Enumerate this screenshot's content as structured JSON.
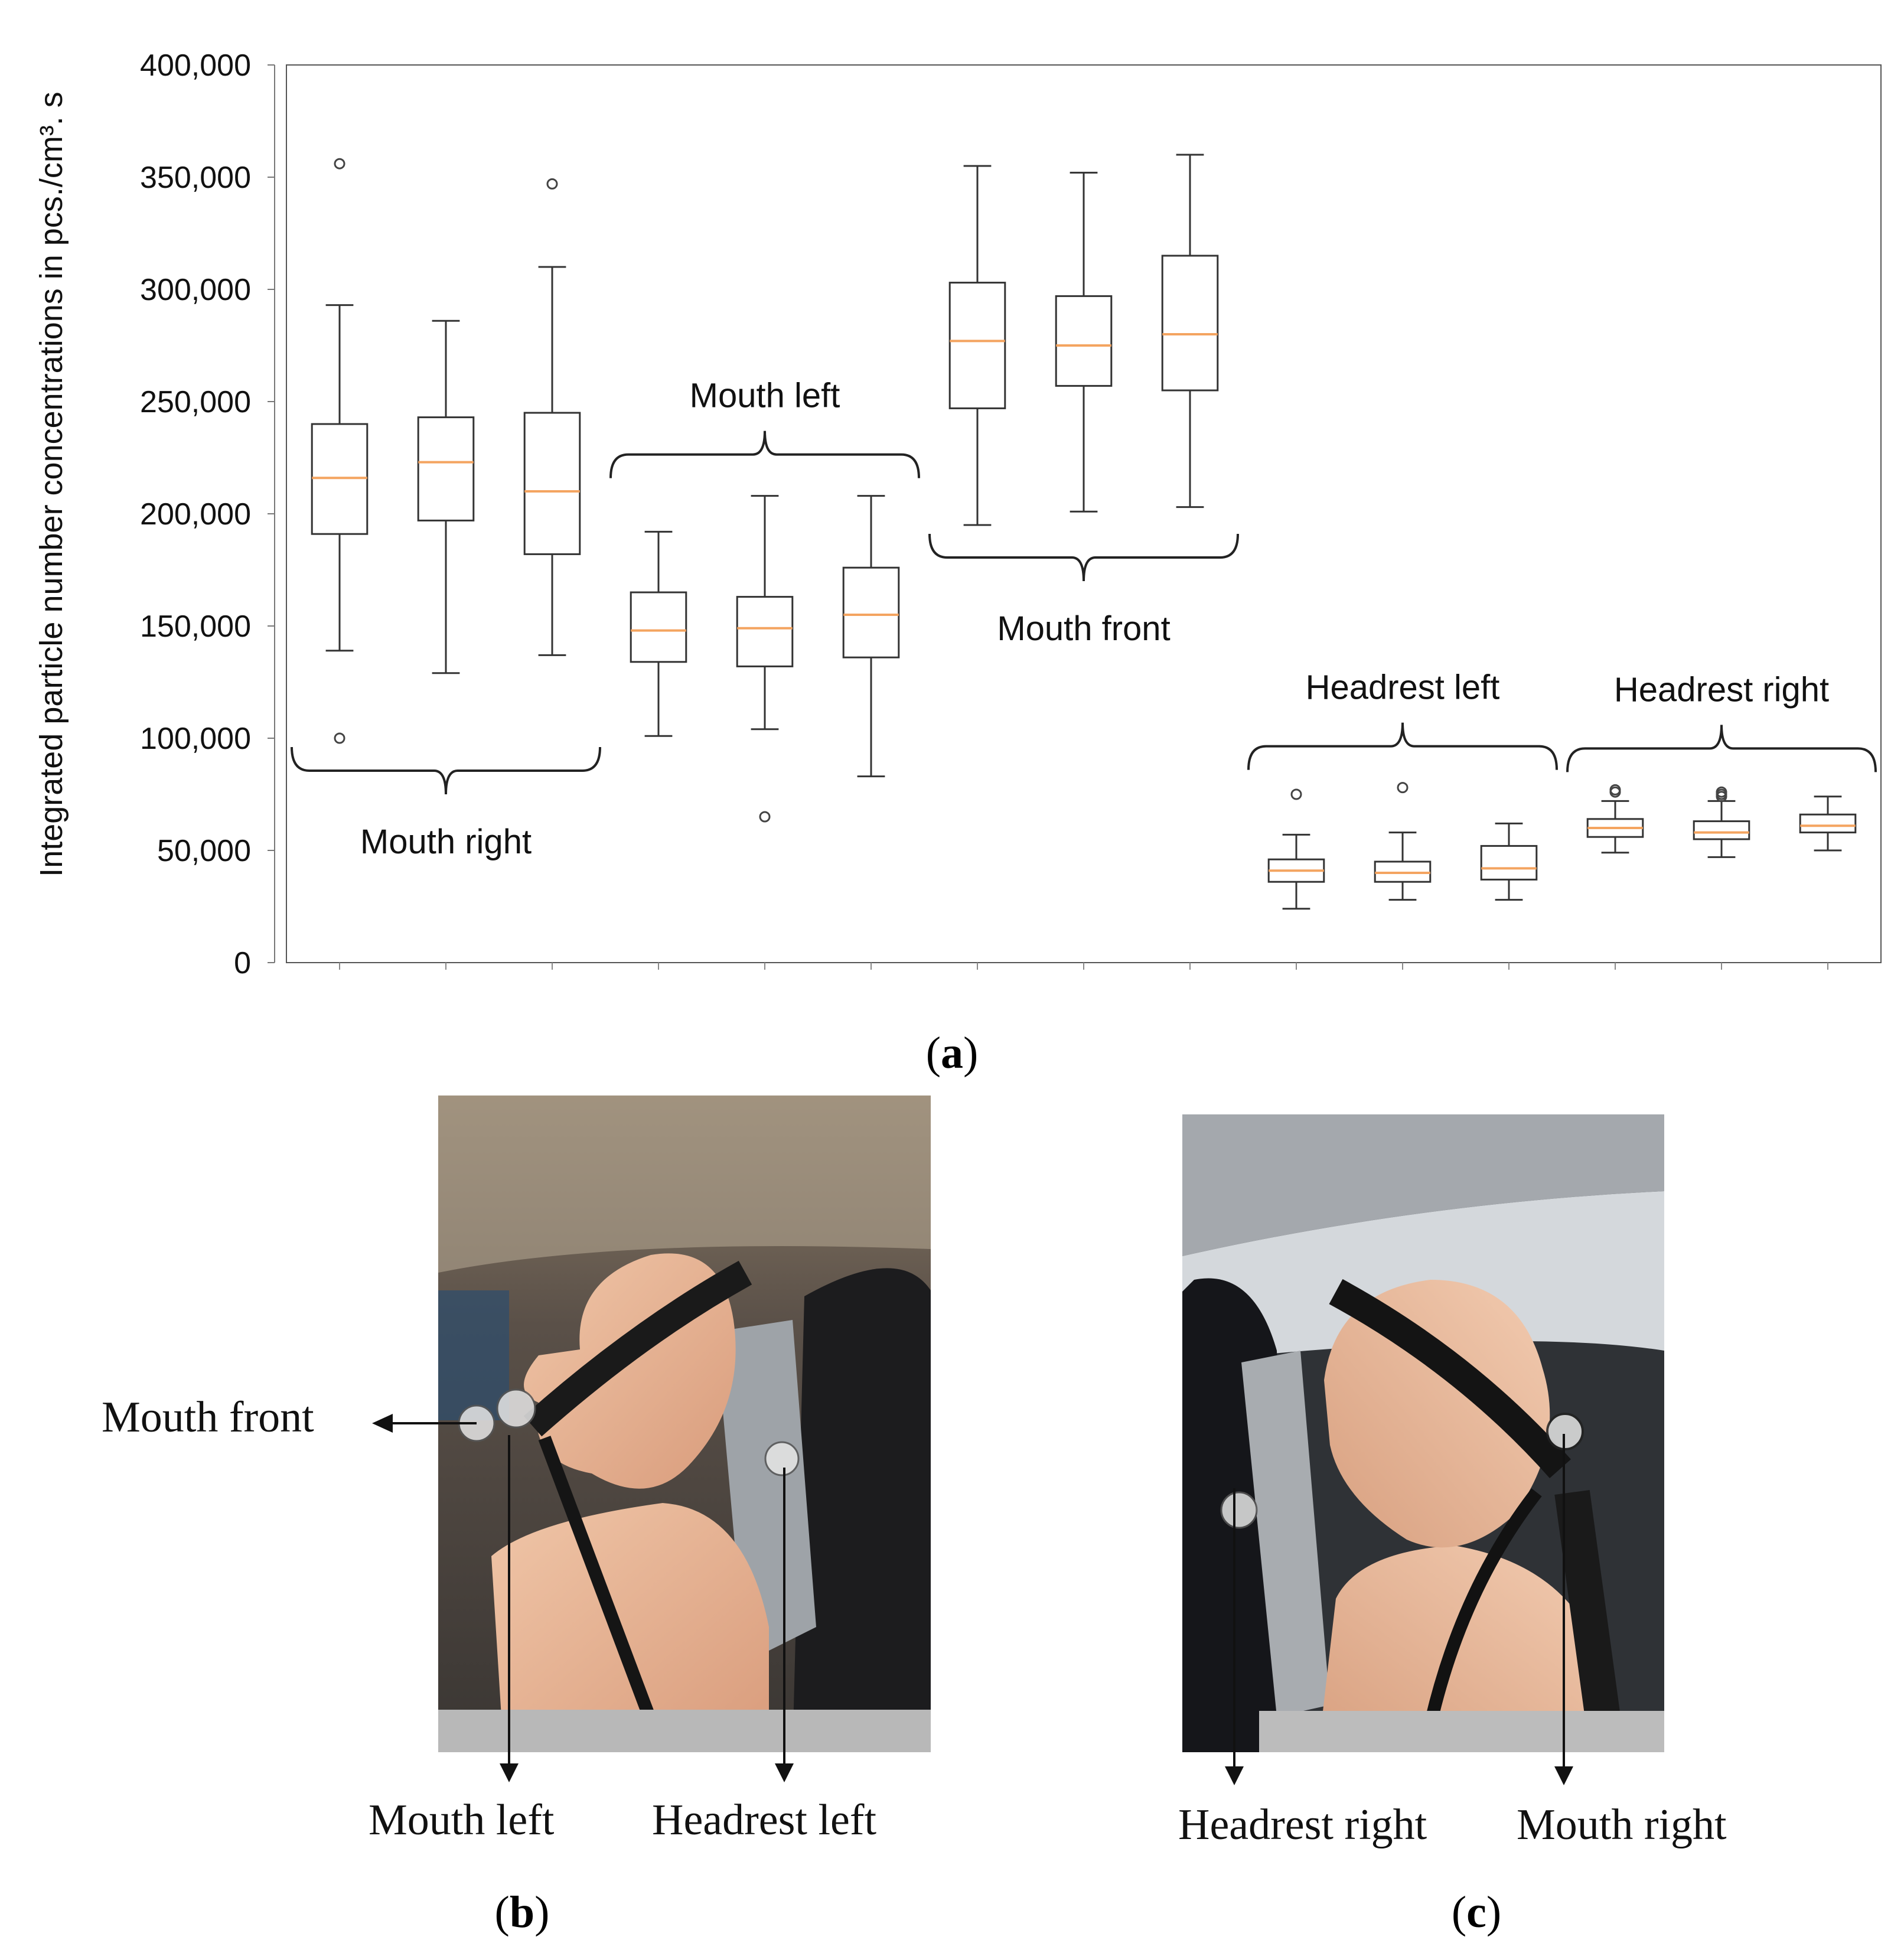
{
  "chart_data": {
    "type": "box",
    "ylabel": "Integrated particle number concentrations in pcs./cm³. s",
    "ylim": [
      0,
      400000
    ],
    "yticks": [
      0,
      50000,
      100000,
      150000,
      200000,
      250000,
      300000,
      350000,
      400000
    ],
    "ytick_labels": [
      "0",
      "50,000",
      "100,000",
      "150,000",
      "200,000",
      "250,000",
      "300,000",
      "350,000",
      "400,000"
    ],
    "median_color": "#f4a460",
    "box_color": "#333333",
    "groups": [
      {
        "name": "Mouth right",
        "label_position": "below",
        "boxes": [
          {
            "whislo": 139000,
            "q1": 191000,
            "med": 216000,
            "q3": 240000,
            "whishi": 293000,
            "fliers": [
              356000,
              100000
            ]
          },
          {
            "whislo": 129000,
            "q1": 197000,
            "med": 223000,
            "q3": 243000,
            "whishi": 286000,
            "fliers": []
          },
          {
            "whislo": 137000,
            "q1": 182000,
            "med": 210000,
            "q3": 245000,
            "whishi": 310000,
            "fliers": [
              347000
            ]
          }
        ]
      },
      {
        "name": "Mouth left",
        "label_position": "above",
        "boxes": [
          {
            "whislo": 101000,
            "q1": 134000,
            "med": 148000,
            "q3": 165000,
            "whishi": 192000,
            "fliers": []
          },
          {
            "whislo": 104000,
            "q1": 132000,
            "med": 149000,
            "q3": 163000,
            "whishi": 208000,
            "fliers": [
              65000
            ]
          },
          {
            "whislo": 83000,
            "q1": 136000,
            "med": 155000,
            "q3": 176000,
            "whishi": 208000,
            "fliers": []
          }
        ]
      },
      {
        "name": "Mouth front",
        "label_position": "below",
        "boxes": [
          {
            "whislo": 195000,
            "q1": 247000,
            "med": 277000,
            "q3": 303000,
            "whishi": 355000,
            "fliers": []
          },
          {
            "whislo": 201000,
            "q1": 257000,
            "med": 275000,
            "q3": 297000,
            "whishi": 352000,
            "fliers": []
          },
          {
            "whislo": 203000,
            "q1": 255000,
            "med": 280000,
            "q3": 315000,
            "whishi": 360000,
            "fliers": []
          }
        ]
      },
      {
        "name": "Headrest left",
        "label_position": "above",
        "boxes": [
          {
            "whislo": 24000,
            "q1": 36000,
            "med": 41000,
            "q3": 46000,
            "whishi": 57000,
            "fliers": [
              75000
            ]
          },
          {
            "whislo": 28000,
            "q1": 36000,
            "med": 40000,
            "q3": 45000,
            "whishi": 58000,
            "fliers": [
              78000
            ]
          },
          {
            "whislo": 28000,
            "q1": 37000,
            "med": 42000,
            "q3": 52000,
            "whishi": 62000,
            "fliers": []
          }
        ]
      },
      {
        "name": "Headrest right",
        "label_position": "above",
        "boxes": [
          {
            "whislo": 49000,
            "q1": 56000,
            "med": 60000,
            "q3": 64000,
            "whishi": 72000,
            "fliers": [
              76000,
              77000
            ]
          },
          {
            "whislo": 47000,
            "q1": 55000,
            "med": 58000,
            "q3": 63000,
            "whishi": 72000,
            "fliers": [
              74000,
              75000,
              76000
            ]
          },
          {
            "whislo": 50000,
            "q1": 58000,
            "med": 61000,
            "q3": 66000,
            "whishi": 74000,
            "fliers": []
          }
        ]
      }
    ]
  },
  "panels": {
    "a": "a",
    "b": "b",
    "c": "c"
  },
  "photo_b_labels": {
    "mouth_front": "Mouth front",
    "mouth_left": "Mouth left",
    "headrest_left": "Headrest left"
  },
  "photo_c_labels": {
    "headrest_right": "Headrest right",
    "mouth_right": "Mouth right"
  }
}
